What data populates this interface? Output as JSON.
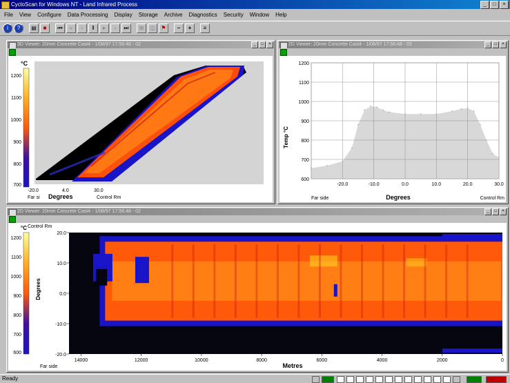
{
  "app": {
    "title": "CycloScan for Windows NT - Land Infrared Process",
    "window_buttons": [
      "_",
      "□",
      "×"
    ]
  },
  "menu": [
    "File",
    "View",
    "Configure",
    "Data Processing",
    "Display",
    "Storage",
    "Archive",
    "Diagnostics",
    "Security",
    "Window",
    "Help"
  ],
  "toolbar": {
    "icons": [
      "info-icon",
      "help-icon",
      "print-icon",
      "stop-icon",
      "first-icon",
      "prev-fast-icon",
      "prev-icon",
      "pause-icon",
      "play-icon",
      "next-icon",
      "last-icon",
      "zoom-icon",
      "marker-icon",
      "flag-icon",
      "minus-icon",
      "plus-icon",
      "settings-icon"
    ],
    "minus_label": "−",
    "plus_label": "+"
  },
  "panels": {
    "three_d": {
      "title": "3D Viewer: 20mm Concrete Cast4 - 1/08/97 17:56:48 - 02",
      "unit": "°C",
      "scale_ticks": [
        "1200",
        "1100",
        "1000",
        "900",
        "800",
        "700"
      ],
      "x_ticks": [
        "-20.0",
        "4.0",
        "30.0"
      ],
      "x_label": "Degrees",
      "far_label": "Far si",
      "control_label": "Control Rm"
    },
    "profile": {
      "title": "2D Viewer: 20mm Concrete Cast4 - 1/08/97 17:56:48 - 02",
      "y_label": "Temp °C",
      "x_label": "Degrees",
      "far_label": "Far side",
      "control_label": "Control Rm"
    },
    "thermal": {
      "title": "2D Viewer: 20mm Concrete Cast4 - 1/08/97 17:56:48 - 02",
      "unit": "°C",
      "control_label": "Control Rm",
      "far_label": "Far side",
      "scale_ticks": [
        "1200",
        "1100",
        "1000",
        "900",
        "800",
        "700",
        "600"
      ],
      "y_label": "Degrees",
      "x_label": "Metres"
    }
  },
  "chart_data": [
    {
      "type": "line",
      "x": [
        -30,
        -25,
        -20,
        -17,
        -15,
        -13,
        -11,
        -9,
        -7,
        -5,
        0,
        5,
        10,
        15,
        18,
        20,
        22,
        24,
        26,
        28,
        30
      ],
      "y": [
        655,
        668,
        690,
        760,
        880,
        955,
        975,
        970,
        955,
        945,
        935,
        935,
        935,
        950,
        962,
        965,
        950,
        880,
        800,
        730,
        710
      ],
      "xlabel": "Degrees",
      "ylabel": "Temp °C",
      "xlim": [
        -30,
        30
      ],
      "ylim": [
        600,
        1200
      ],
      "x_ticks": [
        -20.0,
        -10.0,
        0.0,
        10.0,
        20.0,
        30.0
      ],
      "x_tick_labels": [
        "-20.0",
        "-10.0",
        "0.0",
        "10.0",
        "20.0",
        "30.0"
      ],
      "y_ticks": [
        600,
        700,
        800,
        900,
        1000,
        1100,
        1200
      ],
      "grid": true,
      "fill_color": "#d8d8d8"
    },
    {
      "type": "heatmap",
      "xlabel": "Metres",
      "ylabel": "Degrees",
      "x_ticks": [
        14000,
        12000,
        10000,
        8000,
        6000,
        4000,
        2000,
        0
      ],
      "x_tick_labels": [
        "14000",
        "12000",
        "10000",
        "8000",
        "6000",
        "4000",
        "2000",
        "0"
      ],
      "y_ticks": [
        20.0,
        10.0,
        0.0,
        -10.0,
        -20.0
      ],
      "y_tick_labels": [
        "20.0",
        "10.0",
        "0.0",
        "-10.0",
        "-20.0"
      ],
      "xlim": [
        14400,
        0
      ],
      "ylim": [
        -20,
        20
      ],
      "hot_band_degrees": [
        -9,
        17
      ],
      "value_range_c": [
        600,
        1200
      ],
      "colors": {
        "background": "#050510",
        "edge": "#1a14c8",
        "warm": "#ff5a0a",
        "core": "#ff8c18",
        "hot": "#ffd020",
        "cool": "#c81010"
      }
    }
  ],
  "status": {
    "text": "Ready",
    "colors": {
      "green": "#008000",
      "red": "#c00000",
      "white": "#ffffff"
    }
  }
}
